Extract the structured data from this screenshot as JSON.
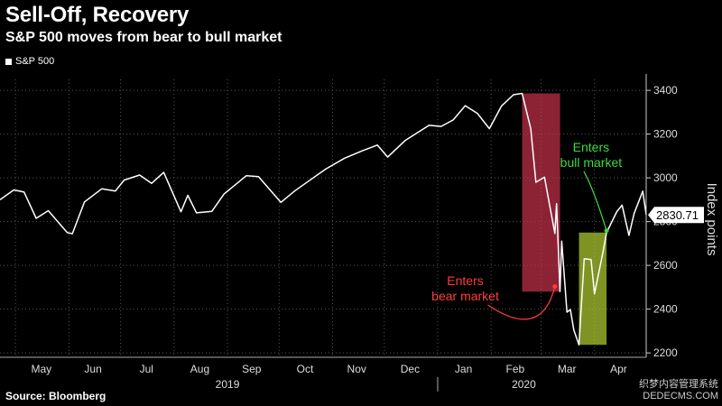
{
  "chart_data": {
    "type": "line",
    "title": "Sell-Off, Recovery",
    "subtitle": "S&P 500 moves from bear to bull market",
    "legend": "S&P 500",
    "ylabel": "Index points",
    "ylim": [
      2180,
      3450
    ],
    "yticks": [
      2200,
      2400,
      2600,
      2800,
      3000,
      3200,
      3400
    ],
    "xlim": [
      "2019-04-22",
      "2020-05-01"
    ],
    "x_months": [
      {
        "label": "May",
        "date": "2019-05-16"
      },
      {
        "label": "Jun",
        "date": "2019-06-15"
      },
      {
        "label": "Jul",
        "date": "2019-07-16"
      },
      {
        "label": "Aug",
        "date": "2019-08-16"
      },
      {
        "label": "Sep",
        "date": "2019-09-15"
      },
      {
        "label": "Oct",
        "date": "2019-10-16"
      },
      {
        "label": "Nov",
        "date": "2019-11-15"
      },
      {
        "label": "Dec",
        "date": "2019-12-16"
      },
      {
        "label": "Jan",
        "date": "2020-01-16"
      },
      {
        "label": "Feb",
        "date": "2020-02-15"
      },
      {
        "label": "Mar",
        "date": "2020-03-16"
      },
      {
        "label": "Apr",
        "date": "2020-04-15"
      }
    ],
    "x_years": [
      {
        "label": "2019",
        "date": "2019-09-01"
      },
      {
        "label": "2020",
        "date": "2020-02-20"
      }
    ],
    "year_divider": "2020-01-01",
    "series": [
      {
        "name": "S&P 500",
        "color": "#ffffff",
        "points": [
          [
            "2019-04-22",
            2900
          ],
          [
            "2019-04-30",
            2945
          ],
          [
            "2019-05-06",
            2935
          ],
          [
            "2019-05-13",
            2815
          ],
          [
            "2019-05-20",
            2850
          ],
          [
            "2019-05-31",
            2750
          ],
          [
            "2019-06-03",
            2745
          ],
          [
            "2019-06-10",
            2890
          ],
          [
            "2019-06-20",
            2950
          ],
          [
            "2019-06-28",
            2940
          ],
          [
            "2019-07-03",
            2990
          ],
          [
            "2019-07-12",
            3013
          ],
          [
            "2019-07-19",
            2975
          ],
          [
            "2019-07-26",
            3025
          ],
          [
            "2019-08-05",
            2845
          ],
          [
            "2019-08-09",
            2920
          ],
          [
            "2019-08-14",
            2840
          ],
          [
            "2019-08-23",
            2847
          ],
          [
            "2019-08-30",
            2926
          ],
          [
            "2019-09-12",
            3010
          ],
          [
            "2019-09-19",
            3006
          ],
          [
            "2019-10-02",
            2888
          ],
          [
            "2019-10-10",
            2940
          ],
          [
            "2019-10-18",
            2985
          ],
          [
            "2019-10-28",
            3040
          ],
          [
            "2019-11-08",
            3090
          ],
          [
            "2019-11-18",
            3123
          ],
          [
            "2019-11-27",
            3150
          ],
          [
            "2019-12-03",
            3095
          ],
          [
            "2019-12-13",
            3170
          ],
          [
            "2019-12-27",
            3240
          ],
          [
            "2020-01-03",
            3235
          ],
          [
            "2020-01-10",
            3265
          ],
          [
            "2020-01-17",
            3330
          ],
          [
            "2020-01-24",
            3295
          ],
          [
            "2020-01-31",
            3225
          ],
          [
            "2020-02-07",
            3328
          ],
          [
            "2020-02-14",
            3380
          ],
          [
            "2020-02-19",
            3386
          ],
          [
            "2020-02-24",
            3225
          ],
          [
            "2020-02-27",
            2980
          ],
          [
            "2020-03-03",
            3003
          ],
          [
            "2020-03-09",
            2746
          ],
          [
            "2020-03-10",
            2882
          ],
          [
            "2020-03-12",
            2480
          ],
          [
            "2020-03-13",
            2711
          ],
          [
            "2020-03-16",
            2386
          ],
          [
            "2020-03-18",
            2398
          ],
          [
            "2020-03-20",
            2305
          ],
          [
            "2020-03-23",
            2237
          ],
          [
            "2020-03-26",
            2630
          ],
          [
            "2020-03-30",
            2627
          ],
          [
            "2020-04-01",
            2470
          ],
          [
            "2020-04-06",
            2664
          ],
          [
            "2020-04-08",
            2750
          ],
          [
            "2020-04-14",
            2846
          ],
          [
            "2020-04-17",
            2875
          ],
          [
            "2020-04-21",
            2737
          ],
          [
            "2020-04-24",
            2837
          ],
          [
            "2020-04-29",
            2939
          ],
          [
            "2020-05-01",
            2830.71
          ]
        ]
      }
    ],
    "last_value": "2830.71",
    "shaded_regions": [
      {
        "name": "bear",
        "start": "2020-02-19",
        "end": "2020-03-12",
        "y0": 2480,
        "y1": 3386,
        "color": "#c8324b"
      },
      {
        "name": "bull",
        "start": "2020-03-23",
        "end": "2020-04-08",
        "y0": 2237,
        "y1": 2750,
        "color": "#b4d232"
      }
    ],
    "annotations": [
      {
        "text_lines": [
          "Enters",
          "bear market"
        ],
        "color": "#ff3c3c",
        "x": "2020-01-17",
        "y": 2510,
        "arrow_to": [
          "2020-03-09",
          2520
        ]
      },
      {
        "text_lines": [
          "Enters",
          "bull market"
        ],
        "color": "#3cdc3c",
        "x": "2020-03-30",
        "y": 3120,
        "arrow_to": [
          "2020-04-08",
          2750
        ]
      }
    ]
  },
  "source": "Source: Bloomberg",
  "watermark": [
    "织梦内容管理系统",
    "DEDECMS.COM"
  ]
}
